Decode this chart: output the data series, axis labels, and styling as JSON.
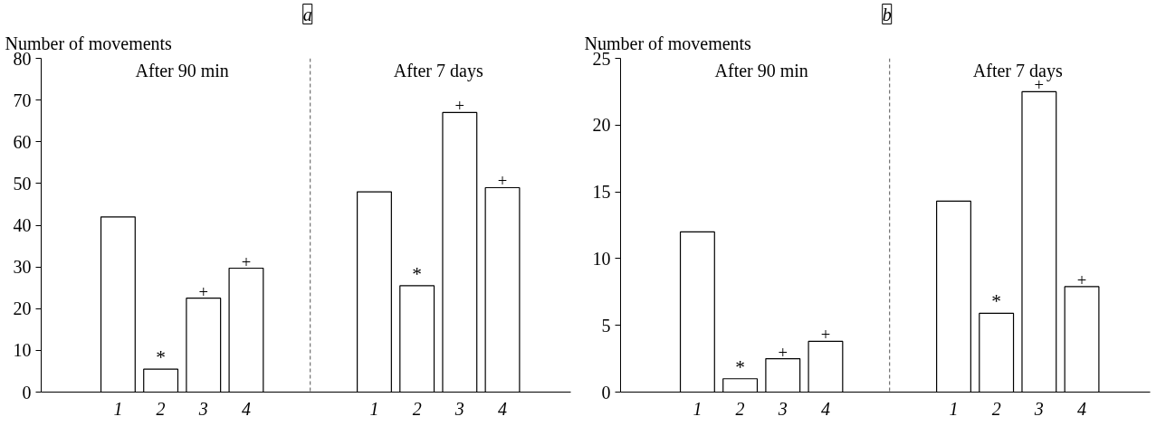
{
  "chart_data": [
    {
      "type": "bar",
      "title": "a",
      "ylabel": "Number of movements",
      "categories": [
        "1",
        "2",
        "3",
        "4",
        null,
        null,
        "1",
        "2",
        "3",
        "4"
      ],
      "values": [
        42,
        5.5,
        22.5,
        29.7,
        null,
        null,
        48,
        25.5,
        67,
        49
      ],
      "color": "#ffffff",
      "value_labels": [
        null,
        "*",
        "+",
        "+",
        null,
        null,
        null,
        "*",
        "+",
        "+"
      ],
      "annotations": [
        "After 90 min",
        "After 7 days"
      ],
      "ref_lines": [
        {
          "axis": "x",
          "line_style": "dashed",
          "color": "#555555"
        }
      ],
      "ylim": [
        0,
        80
      ],
      "yticks": [
        0,
        10,
        20,
        30,
        40,
        50,
        60,
        70,
        80
      ],
      "grid": false
    },
    {
      "type": "bar",
      "title": "b",
      "ylabel": "Number of movements",
      "categories": [
        "1",
        "2",
        "3",
        "4",
        null,
        null,
        "1",
        "2",
        "3",
        "4"
      ],
      "values": [
        12,
        1.0,
        2.5,
        3.8,
        null,
        null,
        14.3,
        5.9,
        22.5,
        7.9
      ],
      "color": "#ffffff",
      "value_labels": [
        null,
        "*",
        "+",
        "+",
        null,
        null,
        null,
        "*",
        "+",
        "+"
      ],
      "annotations": [
        "After 90 min",
        "After 7 days"
      ],
      "ref_lines": [
        {
          "axis": "x",
          "line_style": "dashed",
          "color": "#555555"
        }
      ],
      "ylim": [
        0,
        25
      ],
      "yticks": [
        0,
        5,
        10,
        15,
        20,
        25
      ],
      "grid": false
    }
  ]
}
